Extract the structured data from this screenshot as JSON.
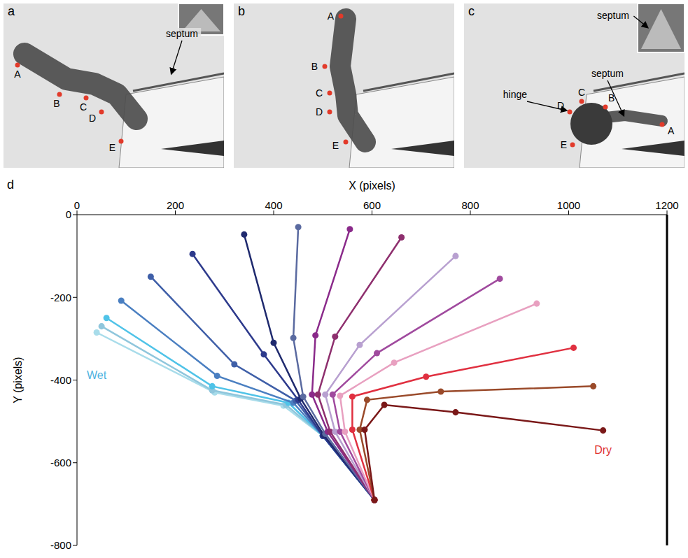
{
  "photo_panels": [
    {
      "letter": "a",
      "points": [
        "A",
        "B",
        "C",
        "D",
        "E"
      ],
      "callouts": [
        "septum"
      ]
    },
    {
      "letter": "b",
      "points": [
        "A",
        "B",
        "C",
        "D",
        "E"
      ],
      "callouts": []
    },
    {
      "letter": "c",
      "points": [
        "A",
        "B",
        "C",
        "D",
        "E"
      ],
      "callouts": [
        "hinge",
        "septum"
      ],
      "inset_callouts": [
        "septum"
      ]
    }
  ],
  "chart_panel": {
    "letter": "d"
  },
  "chart_data": {
    "type": "line",
    "xlabel": "X (pixels)",
    "ylabel": "Y (pixels)",
    "xlim": [
      0,
      1200
    ],
    "xticks": [
      0,
      200,
      400,
      600,
      800,
      1000,
      1200
    ],
    "ylim": [
      -800,
      0
    ],
    "yticks": [
      -800,
      -600,
      -400,
      -200,
      0
    ],
    "grid": false,
    "marker": "circle",
    "annotations": [
      {
        "text": "Wet",
        "color": "#4fb3e0"
      },
      {
        "text": "Dry",
        "color": "#e03030"
      }
    ],
    "series": [
      {
        "color": "#a8dcea",
        "x": [
          605,
          500,
          420,
          280,
          40
        ],
        "values": [
          -690,
          -535,
          -462,
          -430,
          -285
        ]
      },
      {
        "color": "#8fc6dc",
        "x": [
          605,
          500,
          425,
          275,
          50
        ],
        "values": [
          -690,
          -535,
          -460,
          -425,
          -270
        ]
      },
      {
        "color": "#4fc3e8",
        "x": [
          605,
          500,
          430,
          275,
          60
        ],
        "values": [
          -690,
          -535,
          -455,
          -415,
          -250
        ]
      },
      {
        "color": "#4a7fc1",
        "x": [
          605,
          500,
          440,
          285,
          90
        ],
        "values": [
          -690,
          -535,
          -455,
          -390,
          -208
        ]
      },
      {
        "color": "#3f5fa8",
        "x": [
          605,
          500,
          445,
          320,
          150
        ],
        "values": [
          -690,
          -535,
          -450,
          -362,
          -150
        ]
      },
      {
        "color": "#2d3a8c",
        "x": [
          605,
          500,
          450,
          380,
          235
        ],
        "values": [
          -690,
          -535,
          -448,
          -338,
          -95
        ]
      },
      {
        "color": "#1f2a6e",
        "x": [
          605,
          502,
          455,
          400,
          340
        ],
        "values": [
          -690,
          -533,
          -445,
          -310,
          -48
        ]
      },
      {
        "color": "#5a6aa0",
        "x": [
          605,
          505,
          460,
          440,
          450
        ],
        "values": [
          -690,
          -530,
          -440,
          -298,
          -30
        ]
      },
      {
        "color": "#8a2a8a",
        "x": [
          605,
          510,
          478,
          485,
          555
        ],
        "values": [
          -690,
          -525,
          -435,
          -292,
          -35
        ]
      },
      {
        "color": "#8e2f6e",
        "x": [
          605,
          515,
          490,
          525,
          660
        ],
        "values": [
          -690,
          -525,
          -435,
          -295,
          -55
        ]
      },
      {
        "color": "#b8a0d0",
        "x": [
          605,
          525,
          505,
          575,
          770
        ],
        "values": [
          -690,
          -525,
          -435,
          -315,
          -100
        ]
      },
      {
        "color": "#a04a9e",
        "x": [
          605,
          535,
          520,
          610,
          860
        ],
        "values": [
          -690,
          -525,
          -435,
          -335,
          -155
        ]
      },
      {
        "color": "#e8a0c0",
        "x": [
          605,
          545,
          535,
          645,
          935
        ],
        "values": [
          -690,
          -525,
          -438,
          -358,
          -215
        ]
      },
      {
        "color": "#e03040",
        "x": [
          605,
          560,
          560,
          710,
          1010
        ],
        "values": [
          -690,
          -520,
          -440,
          -392,
          -322
        ]
      },
      {
        "color": "#9a4a2a",
        "x": [
          605,
          575,
          590,
          740,
          1050
        ],
        "values": [
          -690,
          -520,
          -448,
          -428,
          -415
        ]
      },
      {
        "color": "#7a1818",
        "x": [
          605,
          585,
          625,
          770,
          1070
        ],
        "values": [
          -690,
          -520,
          -460,
          -478,
          -522
        ]
      }
    ]
  }
}
